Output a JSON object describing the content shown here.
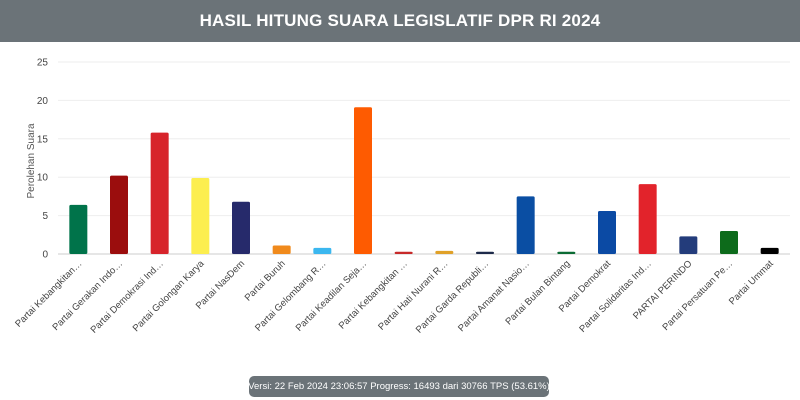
{
  "header": {
    "title": "HASIL HITUNG SUARA LEGISLATIF DPR RI 2024"
  },
  "status": {
    "version_label": "Versi:",
    "version_time": "22 Feb 2024 23:06:57",
    "progress_label": "Progress:",
    "progress_done": "16493",
    "progress_sep": "dari",
    "progress_total": "30766",
    "progress_unit": "TPS",
    "progress_percent": "(53.61%)"
  },
  "chart_data": {
    "type": "bar",
    "title": "",
    "xlabel": "",
    "ylabel": "Perolehan Suara",
    "ylim": [
      0,
      25
    ],
    "yticks": [
      0,
      5,
      10,
      15,
      20,
      25
    ],
    "grid": true,
    "categories": [
      "Partai Kebangkitan…",
      "Partai Gerakan Indo…",
      "Partai Demokrasi Ind…",
      "Partai Golongan Karya",
      "Partai NasDem",
      "Partai Buruh",
      "Partai Gelombang R…",
      "Partai Keadilan Seja…",
      "Partai Kebangkitan …",
      "Partai Hati Nurani R…",
      "Partai Garda Republi…",
      "Partai Amanat Nasio…",
      "Partai Bulan Bintang",
      "Partai Demokrat",
      "Partai Solidaritas Ind…",
      "PARTAI PERINDO",
      "Partai Persatuan Pe…",
      "Partai Ummat"
    ],
    "values": [
      6.4,
      10.2,
      15.8,
      9.9,
      6.8,
      1.1,
      0.8,
      19.1,
      0.3,
      0.4,
      0.3,
      7.5,
      0.3,
      5.6,
      9.1,
      2.3,
      3.0,
      0.8
    ],
    "colors": [
      "#00734a",
      "#9b0d0d",
      "#d7242b",
      "#fcee4f",
      "#262a6b",
      "#f08a1c",
      "#3bb7ef",
      "#fe5b01",
      "#c72a2a",
      "#e0a128",
      "#1d2a4a",
      "#0a4ea3",
      "#0b6b34",
      "#0b4aa4",
      "#e2232b",
      "#233c7b",
      "#0d6b1b",
      "#000000"
    ]
  }
}
